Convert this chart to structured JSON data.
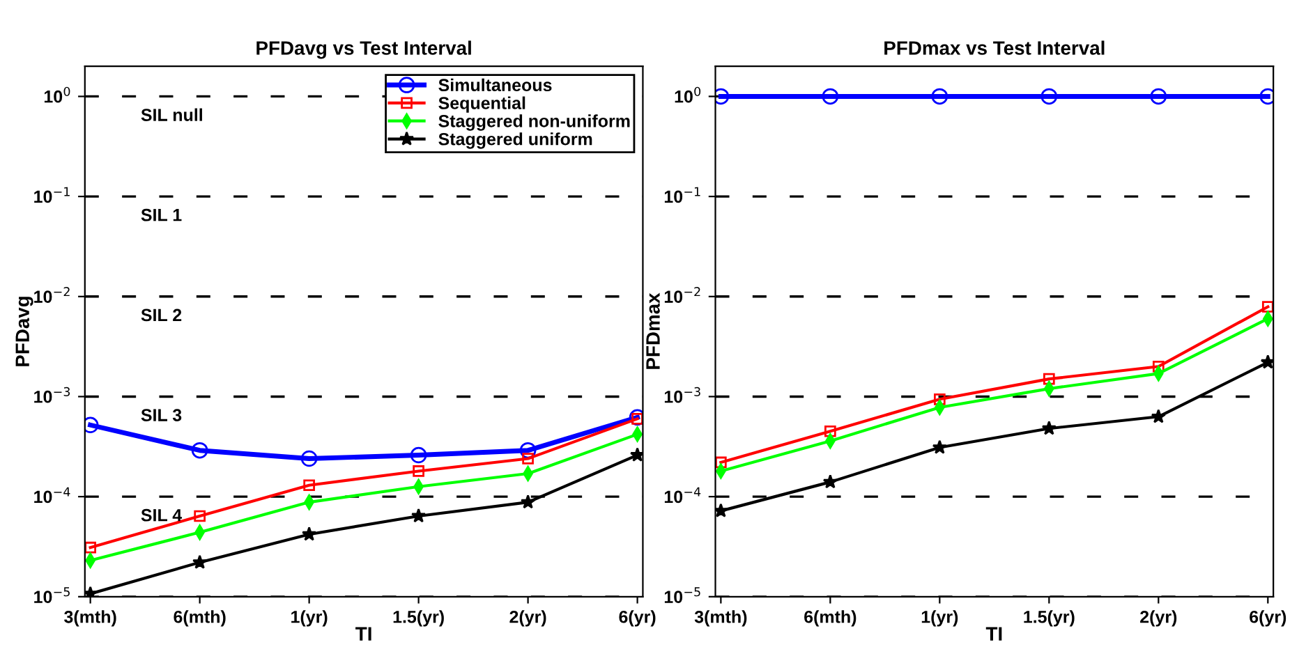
{
  "chart_data": [
    {
      "type": "line",
      "title": "PFDavg vs Test Interval",
      "xlabel": "TI",
      "ylabel": "PFDavg",
      "log": "y",
      "grid": "y",
      "legend": "top right",
      "categories": [
        "3(mth)",
        "6(mth)",
        "1(yr)",
        "1.5(yr)",
        "2(yr)",
        "6(yr)"
      ],
      "ylim": [
        1e-05,
        2
      ],
      "yticks": [
        {
          "value": 1e-05,
          "label": "10$^{−5}$"
        },
        {
          "value": 0.0001,
          "label": "10$^{−4}$"
        },
        {
          "value": 0.001,
          "label": "10$^{−3}$"
        },
        {
          "value": 0.01,
          "label": "10$^{−2}$"
        },
        {
          "value": 0.1,
          "label": "10$^{−1}$"
        },
        {
          "value": 1,
          "label": "10$^{0}$"
        }
      ],
      "annotations": [
        "SIL null",
        "SIL 1",
        "SIL 2",
        "SIL 3",
        "SIL 4"
      ],
      "series": [
        {
          "name": "Simultaneous",
          "color": "#0000ff",
          "marker": "circle",
          "values": [
            0.00052,
            0.00029,
            0.00024,
            0.00026,
            0.00029,
            0.00062
          ]
        },
        {
          "name": "Sequential",
          "color": "#ff0000",
          "marker": "square",
          "values": [
            3.1e-05,
            6.4e-05,
            0.00013,
            0.00018,
            0.00024,
            0.0006
          ]
        },
        {
          "name": "Staggered non-uniform",
          "color": "#00ff00",
          "marker": "diamond",
          "values": [
            2.3e-05,
            4.4e-05,
            8.8e-05,
            0.000126,
            0.00017,
            0.00042
          ]
        },
        {
          "name": "Staggered uniform",
          "color": "#000000",
          "marker": "star",
          "values": [
            1.07e-05,
            2.2e-05,
            4.2e-05,
            6.4e-05,
            8.8e-05,
            0.00026
          ]
        }
      ]
    },
    {
      "type": "line",
      "title": "PFDmax vs Test Interval",
      "xlabel": "TI",
      "ylabel": "PFDmax",
      "log": "y",
      "grid": "y",
      "categories": [
        "3(mth)",
        "6(mth)",
        "1(yr)",
        "1.5(yr)",
        "2(yr)",
        "6(yr)"
      ],
      "ylim": [
        1e-05,
        2
      ],
      "yticks": [
        {
          "value": 1e-05,
          "label": "10$^{−5}$"
        },
        {
          "value": 0.0001,
          "label": "10$^{−4}$"
        },
        {
          "value": 0.001,
          "label": "10$^{−3}$"
        },
        {
          "value": 0.01,
          "label": "10$^{−2}$"
        },
        {
          "value": 0.1,
          "label": "10$^{−1}$"
        },
        {
          "value": 1,
          "label": "10$^{0}$"
        }
      ],
      "series": [
        {
          "color": "#0000ff",
          "marker": "circle",
          "values": [
            1,
            1,
            1,
            1,
            1,
            1
          ]
        },
        {
          "color": "#ff0000",
          "marker": "square",
          "values": [
            0.00022,
            0.00045,
            0.00094,
            0.0015,
            0.002,
            0.0079
          ]
        },
        {
          "color": "#00ff00",
          "marker": "diamond",
          "values": [
            0.00018,
            0.00036,
            0.00078,
            0.0012,
            0.0017,
            0.006
          ]
        },
        {
          "color": "#000000",
          "marker": "star",
          "values": [
            7.2e-05,
            0.00014,
            0.00031,
            0.00048,
            0.00063,
            0.0022
          ]
        }
      ]
    }
  ]
}
